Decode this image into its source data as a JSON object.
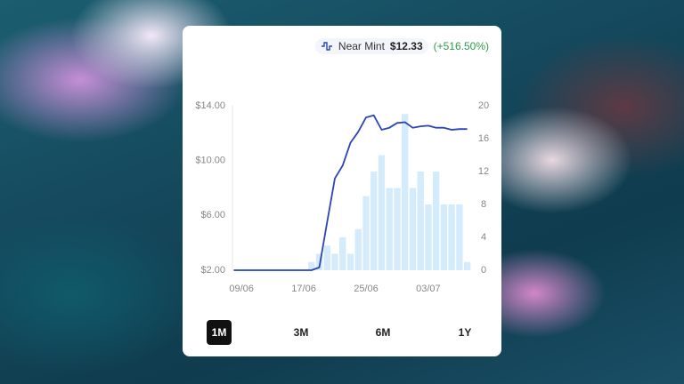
{
  "header": {
    "label": "Near Mint",
    "price": "$12.33",
    "change": "(+516.50%)"
  },
  "range_buttons": [
    "1M",
    "3M",
    "6M",
    "1Y"
  ],
  "selected_range": 0,
  "chart_data": {
    "type": "bar-line",
    "categories": [
      null,
      "09/06",
      null,
      null,
      null,
      null,
      null,
      null,
      null,
      "17/06",
      null,
      null,
      null,
      null,
      null,
      null,
      null,
      "25/06",
      null,
      null,
      null,
      null,
      null,
      null,
      null,
      "03/07",
      null,
      null,
      null,
      null,
      null
    ],
    "series": [
      {
        "type": "bar",
        "axis": "y2",
        "color": "#d4ebfb",
        "values": [
          0,
          0,
          0,
          0,
          0,
          0,
          0,
          0,
          0,
          0,
          1,
          2,
          3,
          2,
          4,
          2,
          5,
          9,
          12,
          14,
          10,
          10,
          19,
          10,
          12,
          8,
          12,
          8,
          8,
          8,
          1
        ]
      },
      {
        "type": "line",
        "color": "#2b44b8",
        "values": [
          2,
          2,
          2,
          2,
          2,
          2,
          2,
          2,
          2,
          2,
          2,
          2.2,
          5.5,
          8.7,
          9.65,
          11.3,
          12.1,
          13.15,
          13.3,
          12.25,
          12.4,
          12.75,
          12.8,
          12.4,
          12.5,
          12.55,
          12.4,
          12.4,
          12.25,
          12.3,
          12.3
        ]
      }
    ],
    "ylim": [
      2,
      14
    ],
    "yticks": [
      {
        "value": 2,
        "label": "$2.00"
      },
      {
        "value": 6,
        "label": "$6.00"
      },
      {
        "value": 10,
        "label": "$10.00"
      },
      {
        "value": 14,
        "label": "$14.00"
      }
    ],
    "y2lim": [
      0,
      20
    ],
    "y2ticks": [
      0,
      4,
      8,
      12,
      16,
      20
    ]
  }
}
